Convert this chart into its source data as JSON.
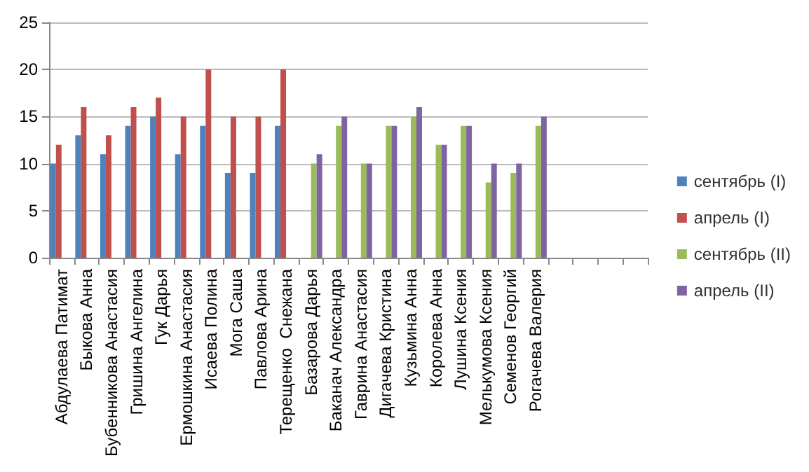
{
  "chart_data": {
    "type": "bar",
    "categories": [
      "Абдулаева Патимат",
      "Быкова Анна",
      "Бубенникова Анастасия",
      "Гришина Ангелина",
      "Гук Дарья",
      "Ермошкина Анастасия",
      "Исаева Полина",
      "Мога Саша",
      "Павлова Арина",
      "Терещенко  Снежана",
      "Базарова Дарья",
      "Баканач Александра",
      "Гаврина Анастасия",
      "Дигачева Кристина",
      "Кузьмина Анна",
      "Королева Анна",
      "Лушина Ксения",
      "Мелькумова Ксения",
      "Семенов Георгий",
      "Рогачева Валерия",
      null,
      null,
      null,
      null
    ],
    "series": [
      {
        "name": "сентябрь (I)",
        "color": "#4f81bd",
        "values": [
          10,
          13,
          11,
          14,
          15,
          11,
          14,
          9,
          9,
          14,
          null,
          null,
          null,
          null,
          null,
          null,
          null,
          null,
          null,
          null,
          null,
          null,
          null,
          null
        ]
      },
      {
        "name": "апрель (I)",
        "color": "#c0504d",
        "values": [
          12,
          16,
          13,
          16,
          17,
          15,
          20,
          15,
          15,
          20,
          null,
          null,
          null,
          null,
          null,
          null,
          null,
          null,
          null,
          null,
          null,
          null,
          null,
          null
        ]
      },
      {
        "name": "сентябрь (II)",
        "color": "#9bbb59",
        "values": [
          null,
          null,
          null,
          null,
          null,
          null,
          null,
          null,
          null,
          null,
          10,
          14,
          10,
          14,
          15,
          12,
          14,
          8,
          9,
          14,
          null,
          null,
          null,
          null
        ]
      },
      {
        "name": "апрель (II)",
        "color": "#8064a2",
        "values": [
          null,
          null,
          null,
          null,
          null,
          null,
          null,
          null,
          null,
          null,
          11,
          15,
          10,
          14,
          16,
          12,
          14,
          10,
          10,
          15,
          null,
          null,
          null,
          null
        ]
      }
    ],
    "ylim": [
      0,
      25
    ],
    "yticks": [
      0,
      5,
      10,
      15,
      20,
      25
    ],
    "grid": "y",
    "legend": "right"
  }
}
